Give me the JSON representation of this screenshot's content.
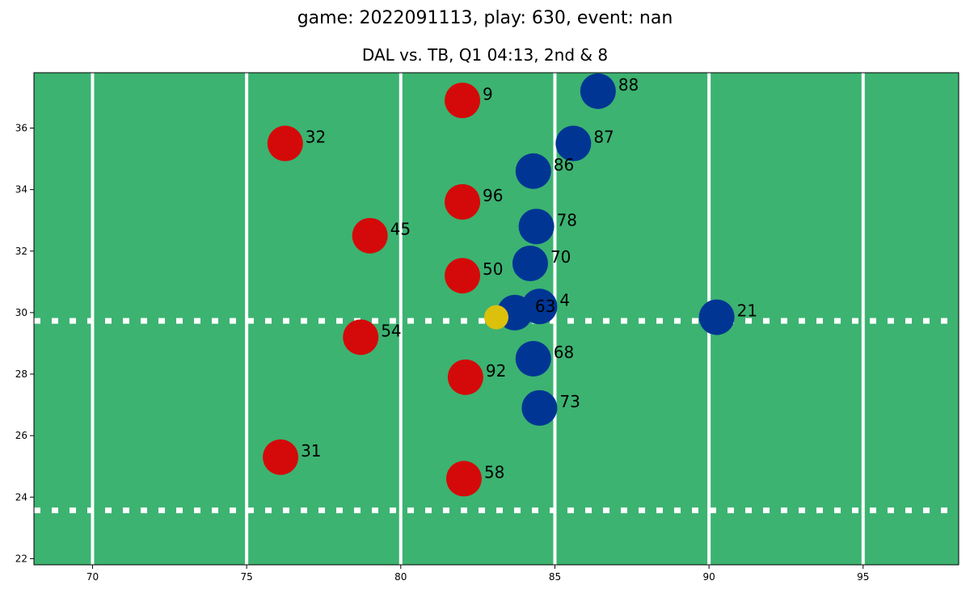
{
  "title": "game: 2022091113, play: 630, event: nan",
  "subtitle": "DAL vs. TB, Q1 04:13, 2nd & 8",
  "colors": {
    "field": "#3cb371",
    "home": "#d40a0a",
    "away": "#003594",
    "football": "#dbc10c",
    "lines": "#ffffff"
  },
  "chart_data": {
    "type": "scatter",
    "title": "game: 2022091113, play: 630, event: nan",
    "subtitle": "DAL vs. TB, Q1 04:13, 2nd & 8",
    "xlim": [
      68.1,
      98.1
    ],
    "ylim": [
      21.8,
      37.8
    ],
    "xticks": [
      70,
      75,
      80,
      85,
      90,
      95
    ],
    "yticks": [
      22,
      24,
      26,
      28,
      30,
      32,
      34,
      36
    ],
    "yard_lines": [
      70,
      75,
      80,
      85,
      90,
      95
    ],
    "hash_lines": [
      29.73,
      23.57
    ],
    "grid": false,
    "series": [
      {
        "team": "home",
        "color": "#d40a0a",
        "points": [
          {
            "x": 82.0,
            "y": 36.9,
            "label": "9"
          },
          {
            "x": 76.25,
            "y": 35.5,
            "label": "32"
          },
          {
            "x": 82.0,
            "y": 33.6,
            "label": "96"
          },
          {
            "x": 79.0,
            "y": 32.5,
            "label": "45"
          },
          {
            "x": 82.0,
            "y": 31.2,
            "label": "50"
          },
          {
            "x": 78.7,
            "y": 29.2,
            "label": "54"
          },
          {
            "x": 82.1,
            "y": 27.9,
            "label": "92"
          },
          {
            "x": 76.1,
            "y": 25.3,
            "label": "31"
          },
          {
            "x": 82.05,
            "y": 24.6,
            "label": "58"
          }
        ]
      },
      {
        "team": "away",
        "color": "#003594",
        "points": [
          {
            "x": 86.4,
            "y": 37.2,
            "label": "88"
          },
          {
            "x": 85.6,
            "y": 35.5,
            "label": "87"
          },
          {
            "x": 84.3,
            "y": 34.6,
            "label": "86"
          },
          {
            "x": 84.4,
            "y": 32.8,
            "label": "78"
          },
          {
            "x": 84.2,
            "y": 31.6,
            "label": "70"
          },
          {
            "x": 84.5,
            "y": 30.2,
            "label": "4"
          },
          {
            "x": 83.7,
            "y": 30.0,
            "label": "63"
          },
          {
            "x": 90.25,
            "y": 29.85,
            "label": "21"
          },
          {
            "x": 84.3,
            "y": 28.5,
            "label": "68"
          },
          {
            "x": 84.5,
            "y": 26.9,
            "label": "73"
          }
        ]
      },
      {
        "team": "football",
        "color": "#dbc10c",
        "points": [
          {
            "x": 83.1,
            "y": 29.85,
            "label": ""
          }
        ]
      }
    ]
  }
}
